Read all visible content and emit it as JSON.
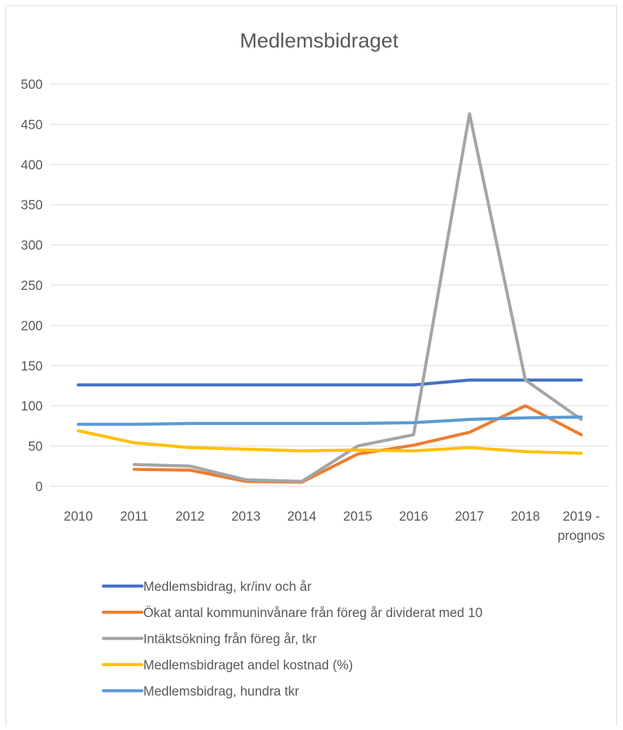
{
  "chart_data": {
    "type": "line",
    "title": "Medlemsbidraget",
    "xlabel": "",
    "ylabel": "",
    "ylim": [
      0,
      500
    ],
    "yticks": [
      0,
      50,
      100,
      150,
      200,
      250,
      300,
      350,
      400,
      450,
      500
    ],
    "grid": true,
    "legend_position": "bottom",
    "categories": [
      [
        "2010"
      ],
      [
        "2011"
      ],
      [
        "2012"
      ],
      [
        "2013"
      ],
      [
        "2014"
      ],
      [
        "2015"
      ],
      [
        "2016"
      ],
      [
        "2017"
      ],
      [
        "2018"
      ],
      [
        "2019 -",
        "prognos"
      ]
    ],
    "series": [
      {
        "name": "Medlemsbidrag, kr/inv och år",
        "color": "#4472C4",
        "values": [
          126,
          126,
          126,
          126,
          126,
          126,
          126,
          132,
          132,
          132
        ]
      },
      {
        "name": "Ökat antal kommuninvånare från föreg år dividerat med 10",
        "color": "#ED7D31",
        "values": [
          null,
          21,
          20,
          6,
          5,
          40,
          51,
          67,
          100,
          64
        ]
      },
      {
        "name": "Intäktsökning från föreg år, tkr",
        "color": "#A5A5A5",
        "values": [
          null,
          27,
          25,
          8,
          6,
          50,
          64,
          463,
          132,
          83
        ]
      },
      {
        "name": "Medlemsbidraget andel kostnad (%)",
        "color": "#FFC000",
        "values": [
          69,
          54,
          48,
          46,
          44,
          45,
          44,
          48,
          43,
          41
        ]
      },
      {
        "name": "Medlemsbidrag,  hundra tkr",
        "color": "#5B9BD5",
        "values": [
          77,
          77,
          78,
          78,
          78,
          78,
          79,
          83,
          85,
          86
        ]
      }
    ]
  }
}
